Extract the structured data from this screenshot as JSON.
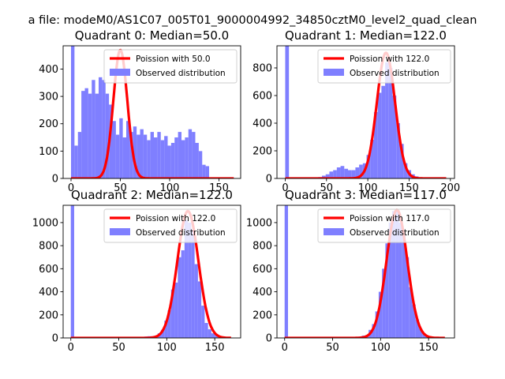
{
  "figure": {
    "suptitle": "a file: modeM0/AS1C07_005T01_9000004992_34850cztM0_level2_quad_clean"
  },
  "colors": {
    "hist": "#7f7fff",
    "curve": "#ff0000",
    "axis": "#000000",
    "background": "#ffffff"
  },
  "chart_data": [
    {
      "type": "bar",
      "title": "Quadrant 0: Median=50.0",
      "xlim": [
        -8,
        172
      ],
      "ylim": [
        0,
        485
      ],
      "xticks": [
        0,
        50,
        100,
        150
      ],
      "yticks": [
        0,
        100,
        200,
        300,
        400
      ],
      "legend": {
        "position": "top-right",
        "curve_label": "Poission with 50.0",
        "hist_label": "Observed distribution"
      },
      "hist": {
        "bin_width": 3.5,
        "bins": [
          {
            "x": 0,
            "v": 485
          },
          {
            "x": 3.5,
            "v": 120
          },
          {
            "x": 7,
            "v": 170
          },
          {
            "x": 10.5,
            "v": 320
          },
          {
            "x": 14,
            "v": 330
          },
          {
            "x": 17.5,
            "v": 310
          },
          {
            "x": 21,
            "v": 360
          },
          {
            "x": 24.5,
            "v": 310
          },
          {
            "x": 28,
            "v": 370
          },
          {
            "x": 31.5,
            "v": 360
          },
          {
            "x": 35,
            "v": 310
          },
          {
            "x": 38.5,
            "v": 270
          },
          {
            "x": 42,
            "v": 210
          },
          {
            "x": 45.5,
            "v": 160
          },
          {
            "x": 49,
            "v": 220
          },
          {
            "x": 52.5,
            "v": 150
          },
          {
            "x": 56,
            "v": 210
          },
          {
            "x": 59.5,
            "v": 170
          },
          {
            "x": 63,
            "v": 190
          },
          {
            "x": 66.5,
            "v": 160
          },
          {
            "x": 70,
            "v": 180
          },
          {
            "x": 73.5,
            "v": 160
          },
          {
            "x": 77,
            "v": 140
          },
          {
            "x": 80.5,
            "v": 170
          },
          {
            "x": 84,
            "v": 150
          },
          {
            "x": 87.5,
            "v": 170
          },
          {
            "x": 91,
            "v": 140
          },
          {
            "x": 94.5,
            "v": 155
          },
          {
            "x": 98,
            "v": 120
          },
          {
            "x": 101.5,
            "v": 130
          },
          {
            "x": 105,
            "v": 150
          },
          {
            "x": 108.5,
            "v": 170
          },
          {
            "x": 112,
            "v": 140
          },
          {
            "x": 115.5,
            "v": 150
          },
          {
            "x": 119,
            "v": 180
          },
          {
            "x": 122.5,
            "v": 170
          },
          {
            "x": 126,
            "v": 130
          },
          {
            "x": 129.5,
            "v": 100
          },
          {
            "x": 133,
            "v": 50
          },
          {
            "x": 136.5,
            "v": 45
          }
        ]
      },
      "curve": {
        "name": "Poission with 50.0",
        "mean": 50,
        "sigma": 7.1,
        "peak": 470,
        "x_range": [
          0,
          165
        ]
      }
    },
    {
      "type": "bar",
      "title": "Quadrant 1: Median=122.0",
      "xlim": [
        -10,
        205
      ],
      "ylim": [
        0,
        960
      ],
      "xticks": [
        0,
        50,
        100,
        150,
        200
      ],
      "yticks": [
        0,
        200,
        400,
        600,
        800
      ],
      "legend": {
        "position": "top-right",
        "curve_label": "Poission with 122.0",
        "hist_label": "Observed distribution"
      },
      "hist": {
        "bin_width": 4.5,
        "bins": [
          {
            "x": 0,
            "v": 960
          },
          {
            "x": 40,
            "v": 10
          },
          {
            "x": 44.5,
            "v": 20
          },
          {
            "x": 49,
            "v": 30
          },
          {
            "x": 53.5,
            "v": 50
          },
          {
            "x": 58,
            "v": 60
          },
          {
            "x": 62.5,
            "v": 80
          },
          {
            "x": 67,
            "v": 90
          },
          {
            "x": 71.5,
            "v": 70
          },
          {
            "x": 76,
            "v": 60
          },
          {
            "x": 80.5,
            "v": 60
          },
          {
            "x": 85,
            "v": 80
          },
          {
            "x": 89.5,
            "v": 100
          },
          {
            "x": 94,
            "v": 110
          },
          {
            "x": 98.5,
            "v": 170
          },
          {
            "x": 103,
            "v": 280
          },
          {
            "x": 107.5,
            "v": 480
          },
          {
            "x": 112,
            "v": 620
          },
          {
            "x": 116.5,
            "v": 670
          },
          {
            "x": 121,
            "v": 840
          },
          {
            "x": 125.5,
            "v": 800
          },
          {
            "x": 130,
            "v": 600
          },
          {
            "x": 134.5,
            "v": 400
          },
          {
            "x": 139,
            "v": 250
          },
          {
            "x": 143.5,
            "v": 110
          },
          {
            "x": 148,
            "v": 60
          },
          {
            "x": 152.5,
            "v": 30
          },
          {
            "x": 157,
            "v": 15
          }
        ]
      },
      "curve": {
        "name": "Poission with 122.0",
        "mean": 122,
        "sigma": 11.0,
        "peak": 910,
        "x_range": [
          0,
          195
        ]
      }
    },
    {
      "type": "bar",
      "title": "Quadrant 2: Median=122.0",
      "xlim": [
        -8,
        177
      ],
      "ylim": [
        0,
        1150
      ],
      "xticks": [
        0,
        50,
        100,
        150
      ],
      "yticks": [
        0,
        200,
        400,
        600,
        800,
        1000
      ],
      "legend": {
        "position": "top-right",
        "curve_label": "Poission with 122.0",
        "hist_label": "Observed distribution"
      },
      "hist": {
        "bin_width": 3.5,
        "bins": [
          {
            "x": 0,
            "v": 1150
          },
          {
            "x": 66,
            "v": 8
          },
          {
            "x": 69.5,
            "v": 10
          },
          {
            "x": 73,
            "v": 10
          },
          {
            "x": 76.5,
            "v": 12
          },
          {
            "x": 80,
            "v": 15
          },
          {
            "x": 83.5,
            "v": 15
          },
          {
            "x": 87,
            "v": 20
          },
          {
            "x": 90.5,
            "v": 40
          },
          {
            "x": 94,
            "v": 70
          },
          {
            "x": 97.5,
            "v": 150
          },
          {
            "x": 101,
            "v": 240
          },
          {
            "x": 104.5,
            "v": 420
          },
          {
            "x": 108,
            "v": 480
          },
          {
            "x": 111.5,
            "v": 700
          },
          {
            "x": 115,
            "v": 760
          },
          {
            "x": 118.5,
            "v": 1020
          },
          {
            "x": 122,
            "v": 1000
          },
          {
            "x": 125.5,
            "v": 940
          },
          {
            "x": 129,
            "v": 640
          },
          {
            "x": 132.5,
            "v": 490
          },
          {
            "x": 136,
            "v": 280
          },
          {
            "x": 139.5,
            "v": 130
          },
          {
            "x": 143,
            "v": 75
          },
          {
            "x": 146.5,
            "v": 40
          },
          {
            "x": 150,
            "v": 25
          }
        ]
      },
      "curve": {
        "name": "Poission with 122.0",
        "mean": 122,
        "sigma": 11.0,
        "peak": 1100,
        "x_range": [
          0,
          167
        ]
      }
    },
    {
      "type": "bar",
      "title": "Quadrant 3: Median=117.0",
      "xlim": [
        -8,
        177
      ],
      "ylim": [
        0,
        1150
      ],
      "xticks": [
        0,
        50,
        100,
        150
      ],
      "yticks": [
        0,
        200,
        400,
        600,
        800,
        1000
      ],
      "legend": {
        "position": "top-right",
        "curve_label": "Poission with 117.0",
        "hist_label": "Observed distribution"
      },
      "hist": {
        "bin_width": 3.5,
        "bins": [
          {
            "x": 0,
            "v": 1150
          },
          {
            "x": 70,
            "v": 8
          },
          {
            "x": 73.5,
            "v": 10
          },
          {
            "x": 77,
            "v": 12
          },
          {
            "x": 80.5,
            "v": 20
          },
          {
            "x": 84,
            "v": 25
          },
          {
            "x": 87.5,
            "v": 70
          },
          {
            "x": 91,
            "v": 120
          },
          {
            "x": 94.5,
            "v": 230
          },
          {
            "x": 98,
            "v": 400
          },
          {
            "x": 101.5,
            "v": 600
          },
          {
            "x": 105,
            "v": 820
          },
          {
            "x": 108.5,
            "v": 1000
          },
          {
            "x": 112,
            "v": 1100
          },
          {
            "x": 115.5,
            "v": 1100
          },
          {
            "x": 119,
            "v": 1000
          },
          {
            "x": 122.5,
            "v": 890
          },
          {
            "x": 126,
            "v": 700
          },
          {
            "x": 129.5,
            "v": 440
          },
          {
            "x": 133,
            "v": 290
          },
          {
            "x": 136.5,
            "v": 160
          },
          {
            "x": 140,
            "v": 80
          },
          {
            "x": 143.5,
            "v": 40
          },
          {
            "x": 147,
            "v": 20
          }
        ]
      },
      "curve": {
        "name": "Poission with 117.0",
        "mean": 117,
        "sigma": 10.8,
        "peak": 1110,
        "x_range": [
          0,
          167
        ]
      }
    }
  ]
}
